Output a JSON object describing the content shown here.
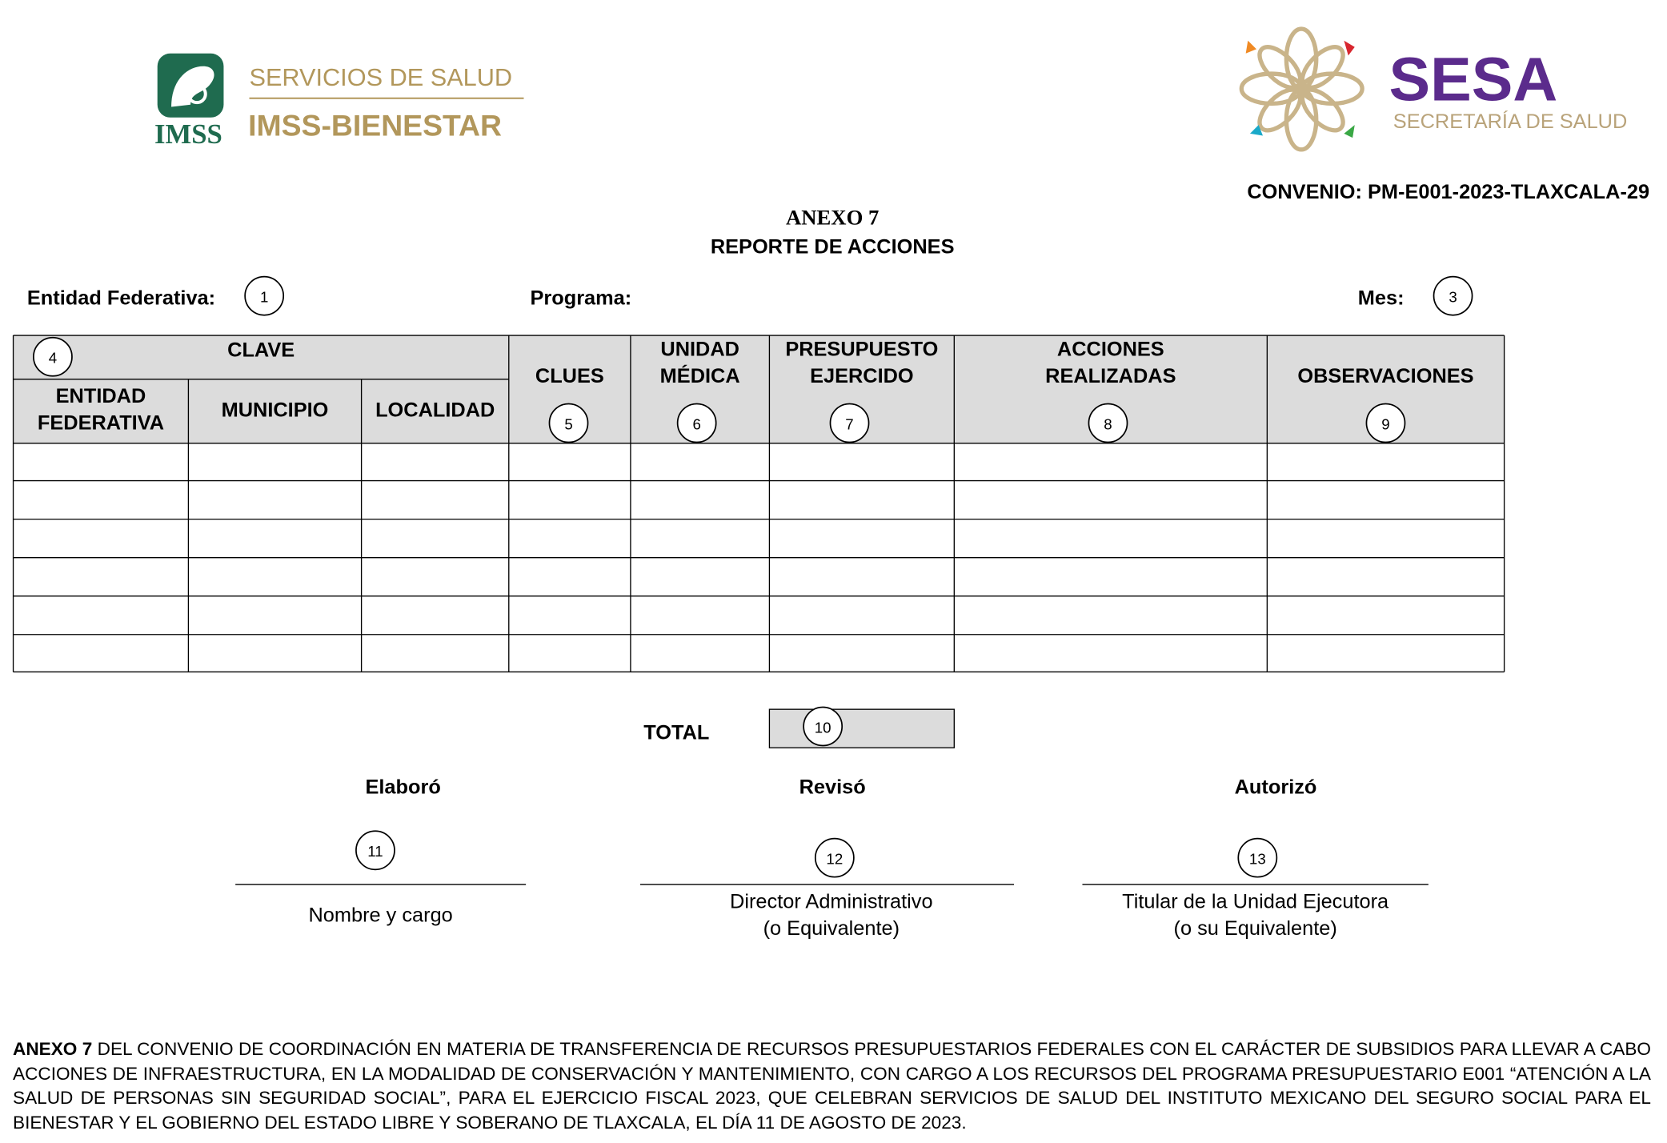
{
  "header": {
    "logo_left": {
      "mark": "IMSS",
      "line1": "SERVICIOS DE SALUD",
      "line2": "IMSS-BIENESTAR"
    },
    "logo_right": {
      "name": "SESA",
      "subtitle": "SECRETARÍA DE SALUD"
    },
    "convenio": "CONVENIO: PM-E001-2023-TLAXCALA-29"
  },
  "title": {
    "annex": "ANEXO 7",
    "report": "REPORTE DE ACCIONES"
  },
  "fields": [
    {
      "label": "Entidad Federativa:",
      "marker": "1"
    },
    {
      "label": "Programa:"
    },
    {
      "label": "Mes:",
      "marker": "3"
    }
  ],
  "table": {
    "group_header": {
      "label": "CLAVE",
      "marker": "4"
    },
    "columns": [
      {
        "lines": [
          "ENTIDAD",
          "FEDERATIVA"
        ]
      },
      {
        "lines": [
          "MUNICIPIO"
        ]
      },
      {
        "lines": [
          "LOCALIDAD"
        ]
      },
      {
        "lines": [
          "CLUES"
        ],
        "marker": "5"
      },
      {
        "lines": [
          "UNIDAD",
          "MÉDICA"
        ],
        "marker": "6"
      },
      {
        "lines": [
          "PRESUPUESTO",
          "EJERCIDO"
        ],
        "marker": "7"
      },
      {
        "lines": [
          "ACCIONES",
          "REALIZADAS"
        ],
        "marker": "8"
      },
      {
        "lines": [
          "OBSERVACIONES"
        ],
        "marker": "9"
      }
    ]
  },
  "total": {
    "label": "TOTAL",
    "marker": "10"
  },
  "signatures": [
    {
      "heading": "Elaboró",
      "marker": "11",
      "caption": [
        "Nombre y cargo"
      ]
    },
    {
      "heading": "Revisó",
      "marker": "12",
      "caption": [
        "Director Administrativo",
        "(o Equivalente)"
      ]
    },
    {
      "heading": "Autorizó",
      "marker": "13",
      "caption": [
        "Titular de la Unidad Ejecutora",
        "(o su Equivalente)"
      ]
    }
  ],
  "footer": {
    "lead": "ANEXO 7",
    "text": "DEL CONVENIO DE COORDINACIÓN EN MATERIA DE TRANSFERENCIA DE RECURSOS PRESUPUESTARIOS FEDERALES CON EL CARÁCTER DE SUBSIDIOS PARA LLEVAR A CABO ACCIONES DE INFRAESTRUCTURA, EN LA MODALIDAD DE CONSERVACIÓN Y MANTENIMIENTO, CON CARGO A LOS RECURSOS DEL PROGRAMA PRESUPUESTARIO E001 “ATENCIÓN A LA SALUD DE PERSONAS SIN SEGURIDAD SOCIAL”, PARA EL EJERCICIO FISCAL 2023, QUE CELEBRAN SERVICIOS DE SALUD DEL INSTITUTO MEXICANO DEL SEGURO SOCIAL PARA EL BIENESTAR Y EL GOBIERNO DEL ESTADO LIBRE Y SOBERANO DE TLAXCALA, EL DÍA 11 DE AGOSTO DE 2023."
  }
}
